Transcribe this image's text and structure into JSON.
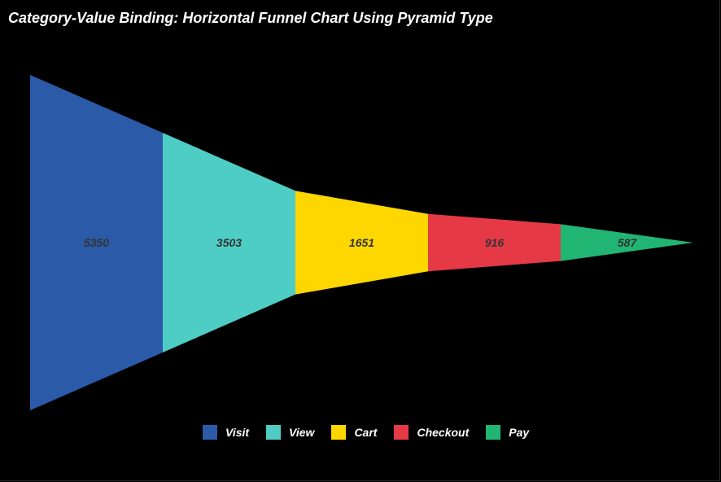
{
  "title": "Category-Value Binding: Horizontal Funnel Chart Using Pyramid Type",
  "chart_data": {
    "type": "funnel",
    "orientation": "horizontal",
    "title": "Category-Value Binding: Horizontal Funnel Chart Using Pyramid Type",
    "categories": [
      "Visit",
      "View",
      "Cart",
      "Checkout",
      "Pay"
    ],
    "values": [
      5350,
      3503,
      1651,
      916,
      587
    ],
    "colors": [
      "#2B5BA8",
      "#4ECDC4",
      "#FFD700",
      "#E63946",
      "#21B573"
    ],
    "legend_position": "bottom-center"
  }
}
